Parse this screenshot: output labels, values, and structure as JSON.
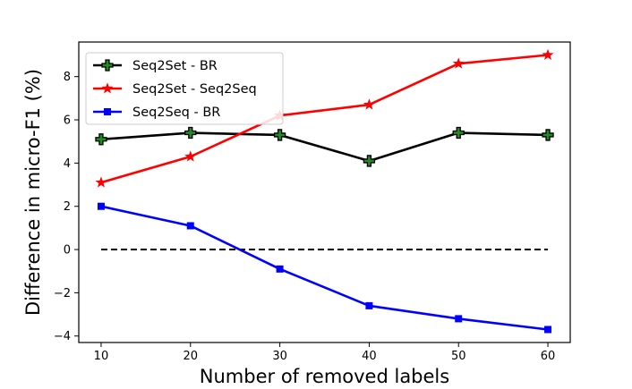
{
  "chart_data": {
    "type": "line",
    "title": "",
    "xlabel": "Number of removed labels",
    "ylabel": "Difference in micro-F1 (%)",
    "x": [
      10,
      20,
      30,
      40,
      50,
      60
    ],
    "xlim": [
      7.5,
      62.5
    ],
    "ylim": [
      -4.3,
      9.6
    ],
    "xticks": [
      10,
      20,
      30,
      40,
      50,
      60
    ],
    "yticks": [
      -4,
      -2,
      0,
      2,
      4,
      6,
      8
    ],
    "grid": false,
    "legend_position": "top-left",
    "series": [
      {
        "name": "Seq2Set - BR",
        "values": [
          5.1,
          5.4,
          5.3,
          4.1,
          5.4,
          5.3
        ],
        "color": "#000000",
        "marker": "plus",
        "marker_fill": "#228b22"
      },
      {
        "name": "Seq2Set - Seq2Seq",
        "values": [
          3.1,
          4.3,
          6.2,
          6.7,
          8.6,
          9.0
        ],
        "color": "#ff0000",
        "marker": "star",
        "marker_fill": "#ff0000"
      },
      {
        "name": "Seq2Seq - BR",
        "values": [
          2.0,
          1.1,
          -0.9,
          -2.6,
          -3.2,
          -3.7
        ],
        "color": "#0000ff",
        "marker": "square",
        "marker_fill": "#0000ff"
      }
    ],
    "reference_line": {
      "y": 0,
      "style": "dashed",
      "color": "#000000"
    }
  }
}
